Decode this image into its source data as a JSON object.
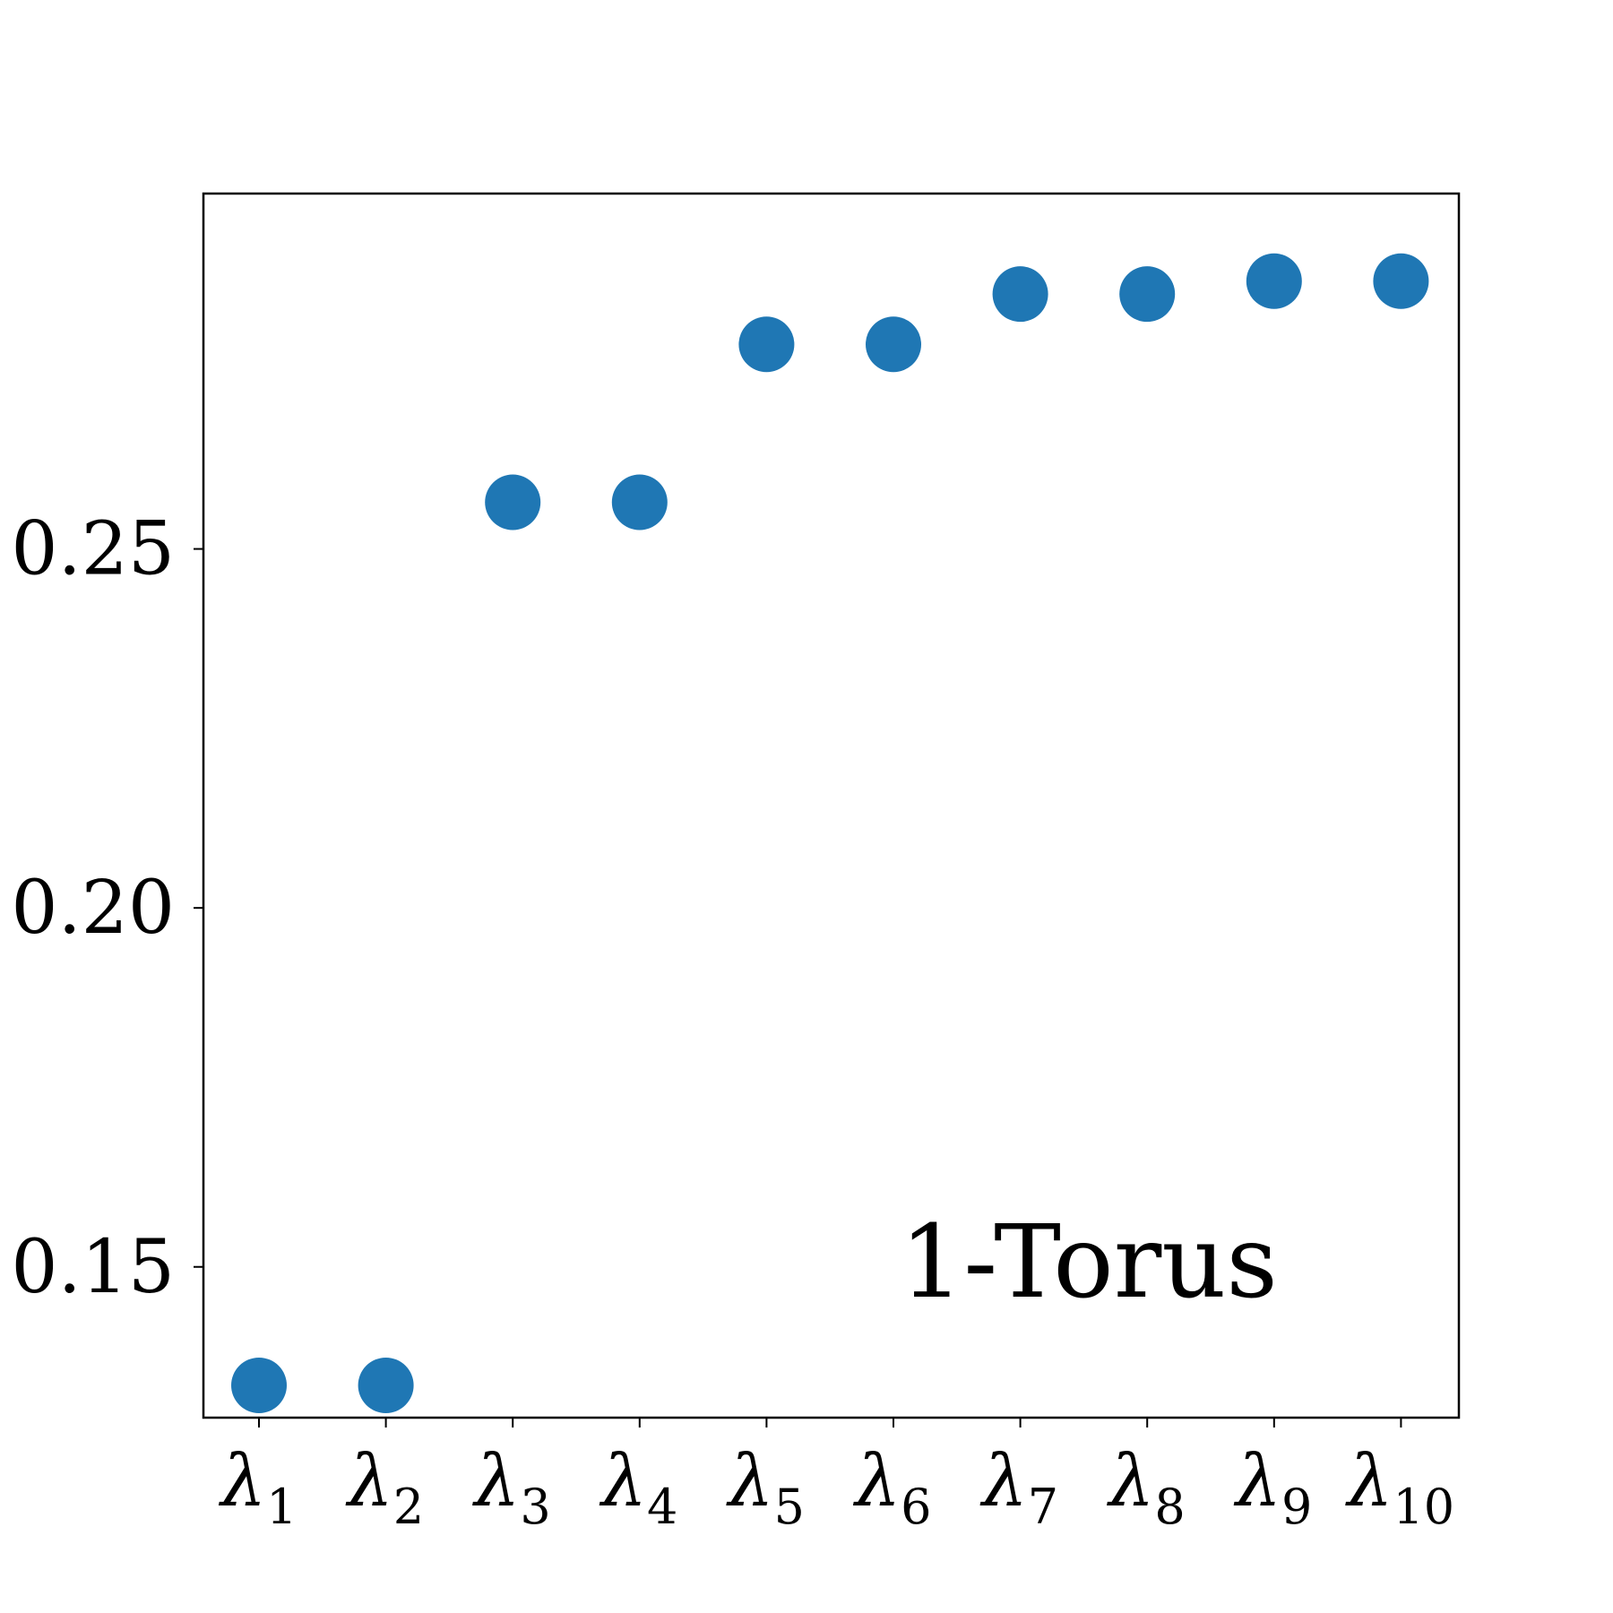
{
  "chart_data": {
    "type": "scatter",
    "title": "",
    "xlabel": "",
    "ylabel": "",
    "categories": [
      "λ1",
      "λ2",
      "λ3",
      "λ4",
      "λ5",
      "λ6",
      "λ7",
      "λ8",
      "λ9",
      "λ10"
    ],
    "tick_labels": [
      {
        "main": "λ",
        "sub": "1"
      },
      {
        "main": "λ",
        "sub": "2"
      },
      {
        "main": "λ",
        "sub": "3"
      },
      {
        "main": "λ",
        "sub": "4"
      },
      {
        "main": "λ",
        "sub": "5"
      },
      {
        "main": "λ",
        "sub": "6"
      },
      {
        "main": "λ",
        "sub": "7"
      },
      {
        "main": "λ",
        "sub": "8"
      },
      {
        "main": "λ",
        "sub": "9"
      },
      {
        "main": "λ",
        "sub": "10"
      }
    ],
    "values": [
      0.1335,
      0.1335,
      0.2565,
      0.2565,
      0.2785,
      0.2785,
      0.2855,
      0.2855,
      0.2873,
      0.2873
    ],
    "ylim": [
      0.129,
      0.2995
    ],
    "yticks": [
      0.15,
      0.2,
      0.25
    ],
    "ytick_labels": [
      "0.15",
      "0.20",
      "0.25"
    ],
    "annotation": "1-Torus",
    "grid": false,
    "legend": "none",
    "marker_color": "#1f77b4"
  }
}
